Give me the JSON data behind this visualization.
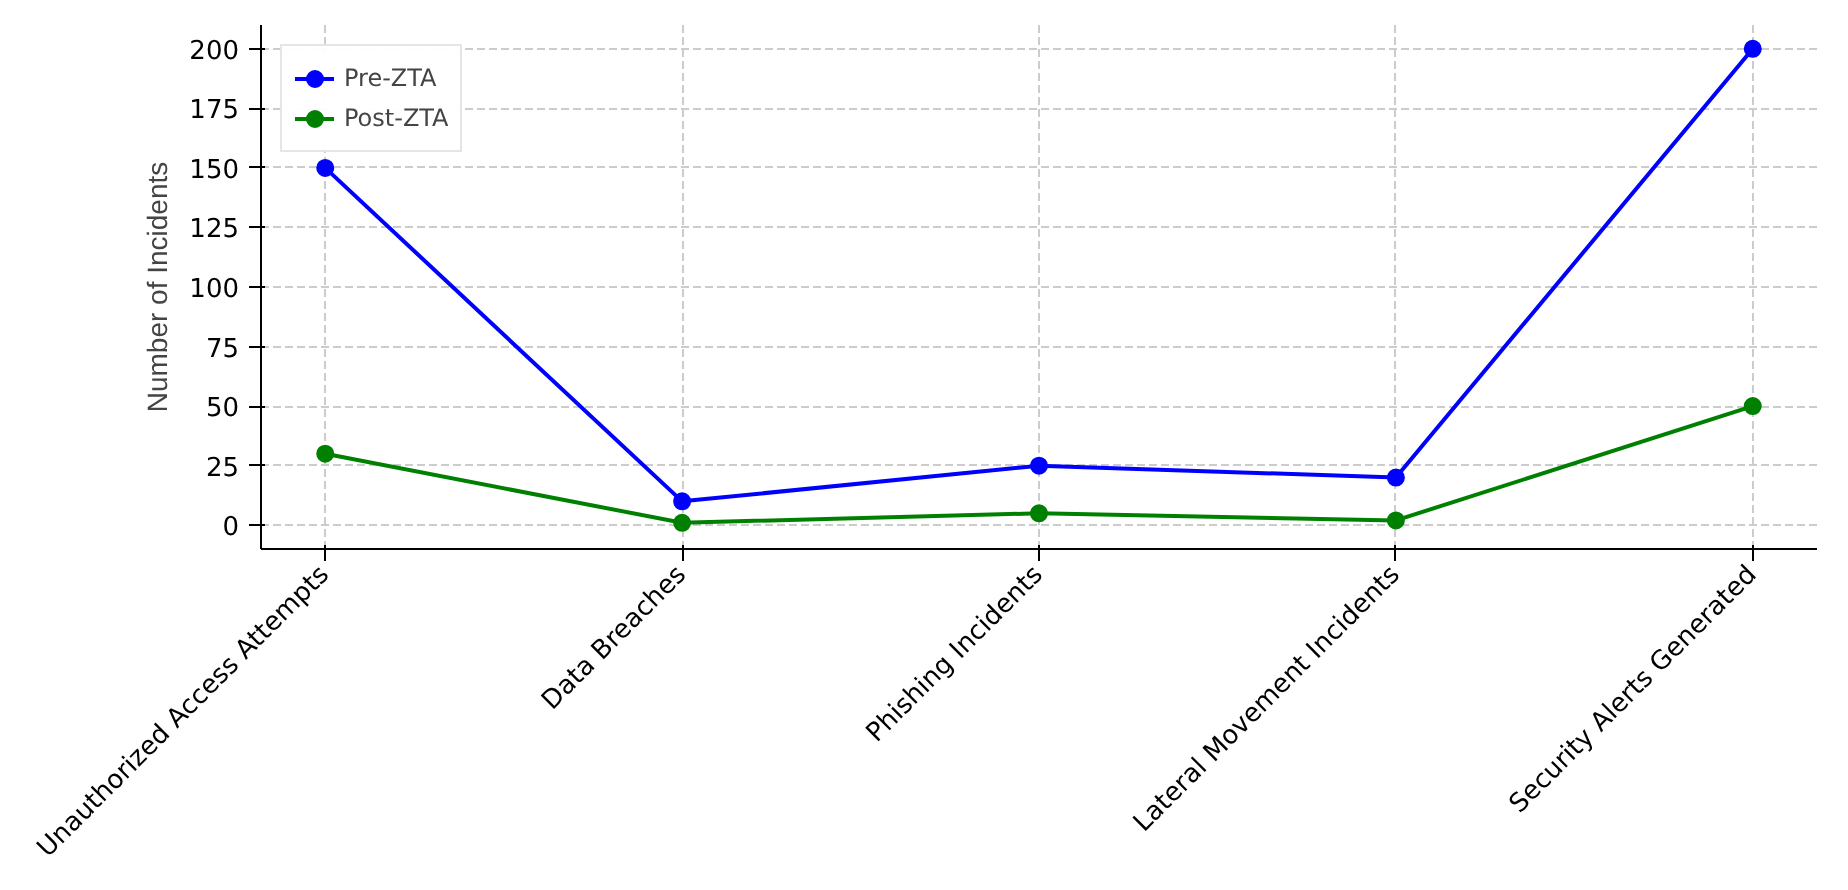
{
  "chart_data": {
    "type": "line",
    "ylabel": "Number of Incidents",
    "categories": [
      "Unauthorized Access Attempts",
      "Data Breaches",
      "Phishing Incidents",
      "Lateral Movement Incidents",
      "Security Alerts Generated"
    ],
    "series": [
      {
        "name": "Pre-ZTA",
        "color": "#0000ff",
        "values": [
          150,
          10,
          25,
          20,
          200
        ]
      },
      {
        "name": "Post-ZTA",
        "color": "#008000",
        "values": [
          30,
          1,
          5,
          2,
          50
        ]
      }
    ],
    "ylim": [
      -10,
      210
    ],
    "yticks": [
      0,
      25,
      50,
      75,
      100,
      125,
      150,
      175,
      200
    ],
    "grid": true,
    "legend": "top left",
    "marker": "circle"
  }
}
